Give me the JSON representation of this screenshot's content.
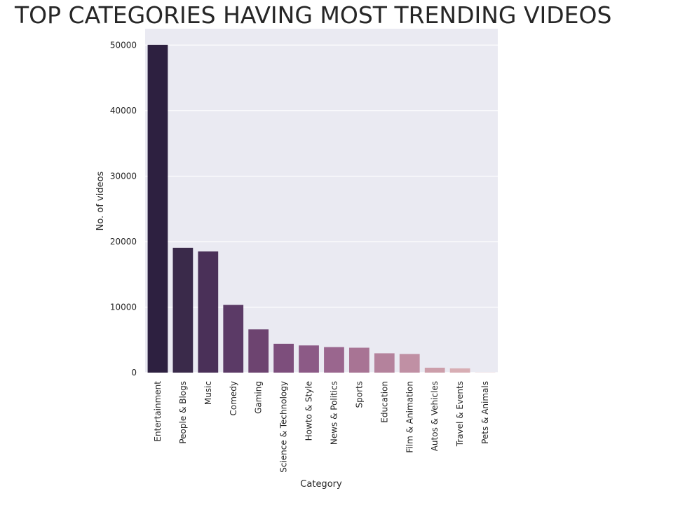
{
  "chart_data": {
    "type": "bar",
    "title": "TOP CATEGORIES HAVING MOST TRENDING VIDEOS",
    "xlabel": "Category",
    "ylabel": "No. of videos",
    "categories": [
      "Entertainment",
      "People & Blogs",
      "Music",
      "Comedy",
      "Gaming",
      "Science & Technology",
      "Howto & Style",
      "News & Politics",
      "Sports",
      "Education",
      "Film & Animation",
      "Autos & Vehicles",
      "Travel & Events",
      "Pets & Animals"
    ],
    "values": [
      50050,
      19050,
      18500,
      10350,
      6600,
      4400,
      4150,
      3900,
      3800,
      2950,
      2850,
      750,
      650,
      30
    ],
    "yticks": [
      0,
      10000,
      20000,
      30000,
      40000,
      50000
    ],
    "ylim": [
      0,
      52500
    ],
    "grid": true,
    "background_color": "#eaeaf2",
    "bar_colors": [
      "#2d2040",
      "#3a2a4a",
      "#4a3058",
      "#5b3a66",
      "#6d4470",
      "#7d4e7c",
      "#8c5a86",
      "#9a668e",
      "#a87494",
      "#b4829c",
      "#c090a4",
      "#cc9eaa",
      "#d8aeb4",
      "#e6c4c8"
    ]
  }
}
